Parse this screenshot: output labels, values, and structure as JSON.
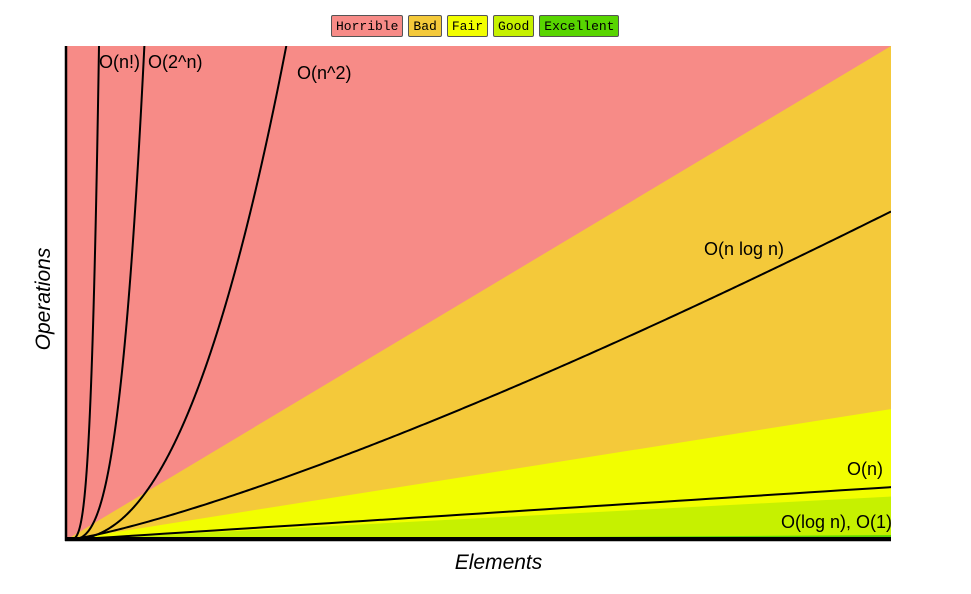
{
  "legend": [
    {
      "label": "Horrible",
      "color": "#f78b87"
    },
    {
      "label": "Bad",
      "color": "#f4c93a"
    },
    {
      "label": "Fair",
      "color": "#f2fe00"
    },
    {
      "label": "Good",
      "color": "#c6f100"
    },
    {
      "label": "Excellent",
      "color": "#58d500"
    }
  ],
  "chart_data": {
    "type": "line",
    "title": "",
    "xlabel": "Elements",
    "ylabel": "Operations",
    "xlim": [
      0,
      100
    ],
    "ylim": [
      0,
      1000
    ],
    "grid": false,
    "legend_position": "top-center",
    "regions": [
      {
        "name": "Horrible",
        "color": "#f78b87",
        "upper_slope": null
      },
      {
        "name": "Bad",
        "color": "#f4c93a",
        "upper_slope": 10
      },
      {
        "name": "Fair",
        "color": "#f2fe00",
        "upper_slope": 2.65
      },
      {
        "name": "Good",
        "color": "#c6f100",
        "upper_slope": 0.88
      },
      {
        "name": "Excellent",
        "color": "#58d500",
        "upper_slope": 0.1
      }
    ],
    "series": [
      {
        "name": "O(n!)",
        "type": "factorial"
      },
      {
        "name": "O(2^n)",
        "type": "exponential"
      },
      {
        "name": "O(n^2)",
        "type": "quadratic"
      },
      {
        "name": "O(n log n)",
        "type": "nlogn"
      },
      {
        "name": "O(n)",
        "type": "linear"
      },
      {
        "name": "O(log n), O(1)",
        "type": "log_const"
      }
    ]
  }
}
